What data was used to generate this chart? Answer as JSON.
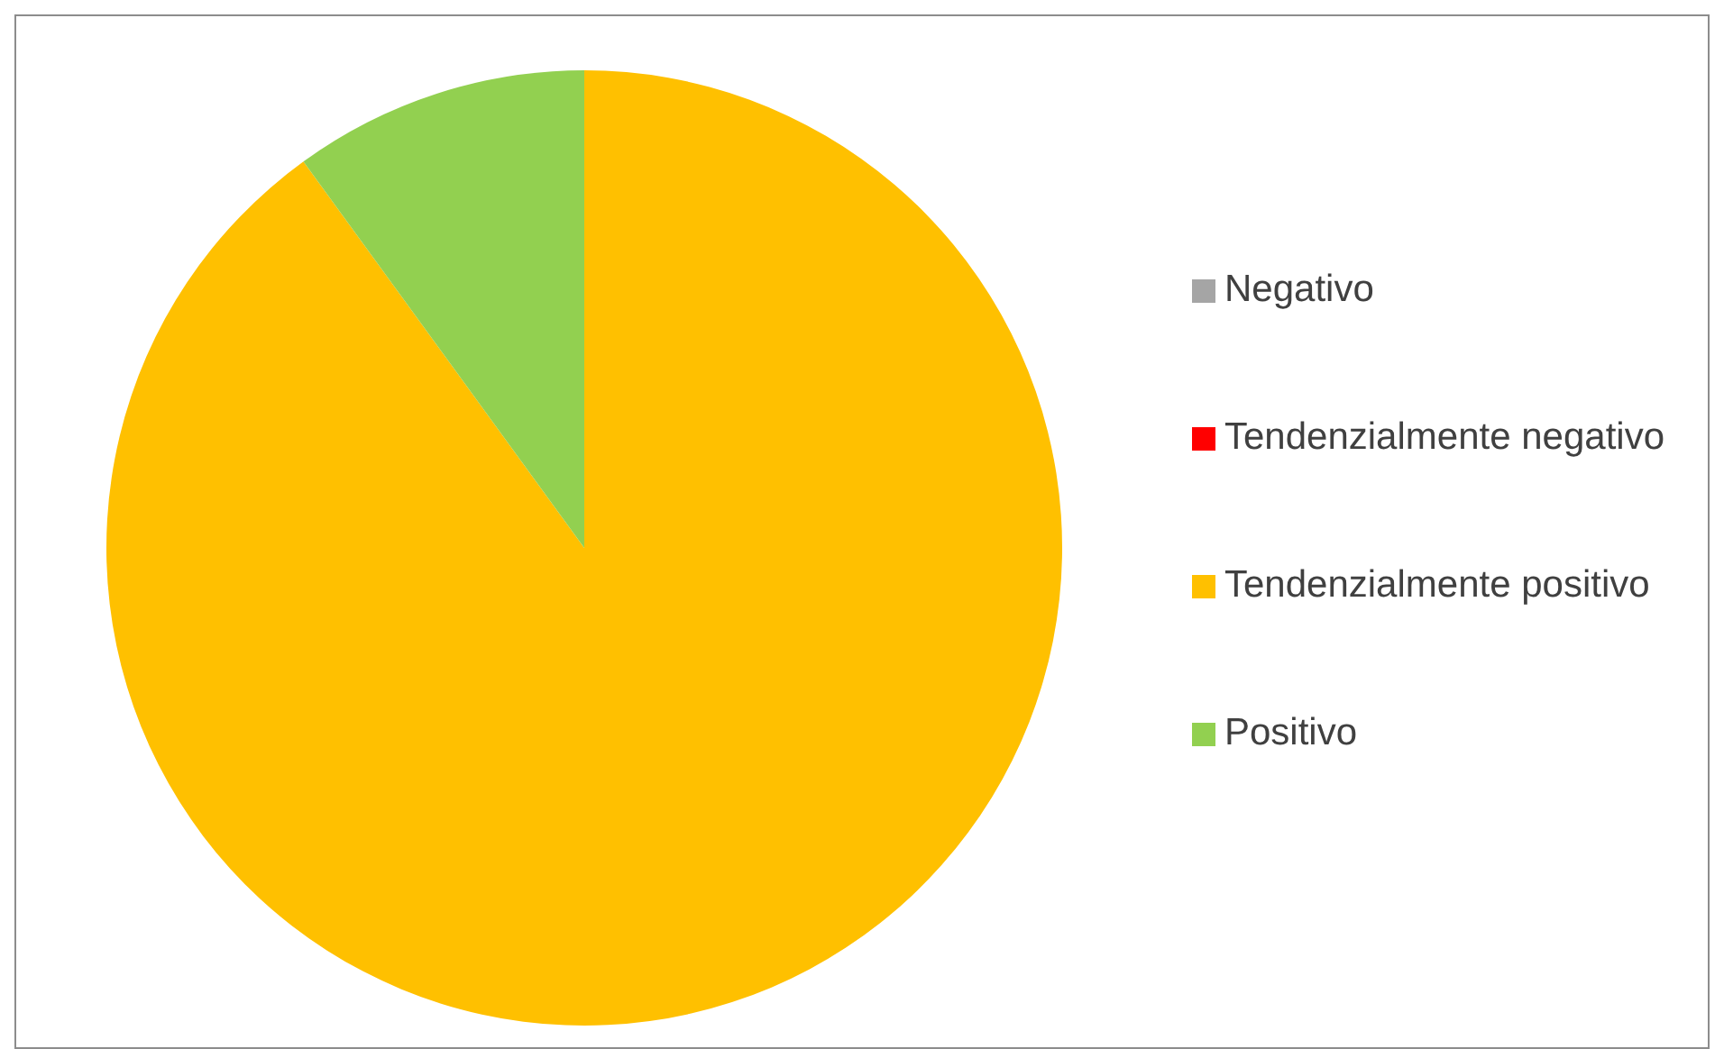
{
  "chart_data": {
    "type": "pie",
    "categories": [
      "Negativo",
      "Tendenzialmente negativo",
      "Tendenzialmente positivo",
      "Positivo"
    ],
    "values": [
      0,
      0,
      90,
      10
    ],
    "colors": [
      "#a5a5a5",
      "#ff0000",
      "#ffc000",
      "#92d050"
    ],
    "legend": "right"
  }
}
